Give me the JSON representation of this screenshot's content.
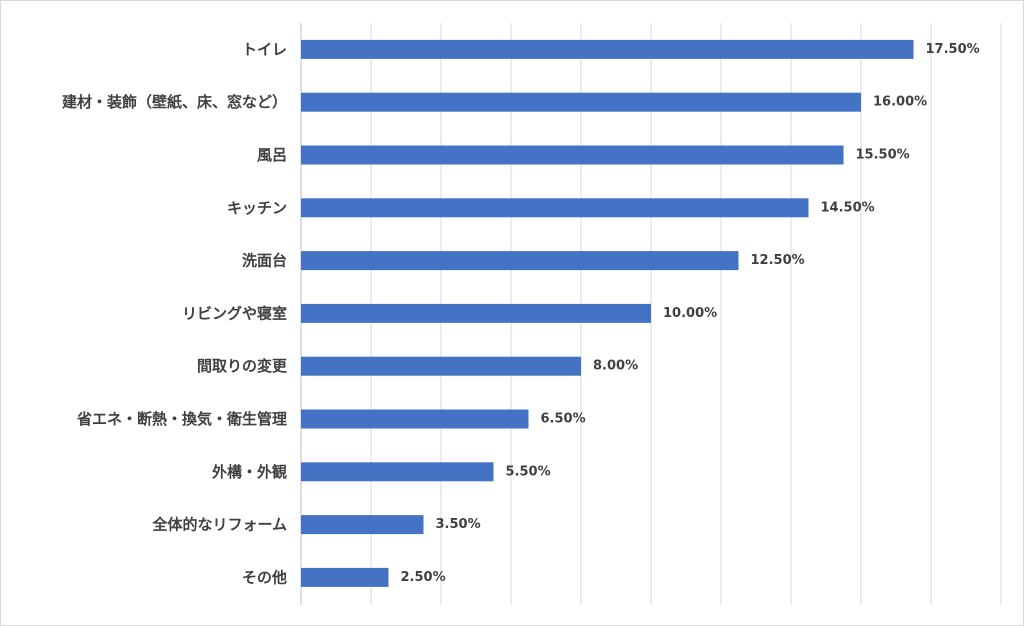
{
  "chart_data": {
    "type": "bar",
    "orientation": "horizontal",
    "categories": [
      "トイレ",
      "建材・装飾（壁紙、床、窓など）",
      "風呂",
      "キッチン",
      "洗面台",
      "リビングや寝室",
      "間取りの変更",
      "省エネ・断熱・換気・衛生管理",
      "外構・外観",
      "全体的なリフォーム",
      "その他"
    ],
    "values": [
      17.5,
      16.0,
      15.5,
      14.5,
      12.5,
      10.0,
      8.0,
      6.5,
      5.5,
      3.5,
      2.5
    ],
    "value_labels": [
      "17.50%",
      "16.00%",
      "15.50%",
      "14.50%",
      "12.50%",
      "10.00%",
      "8.00%",
      "6.50%",
      "5.50%",
      "3.50%",
      "2.50%"
    ],
    "title": "",
    "xlabel": "",
    "ylabel": "",
    "xlim": [
      0,
      20
    ],
    "x_grid_step": 2,
    "grid": true,
    "x_tick_labels_visible": false,
    "legend": "none",
    "bar_color": "#4472C4",
    "grid_color": "#D9D9D9",
    "label_color": "#404040"
  }
}
